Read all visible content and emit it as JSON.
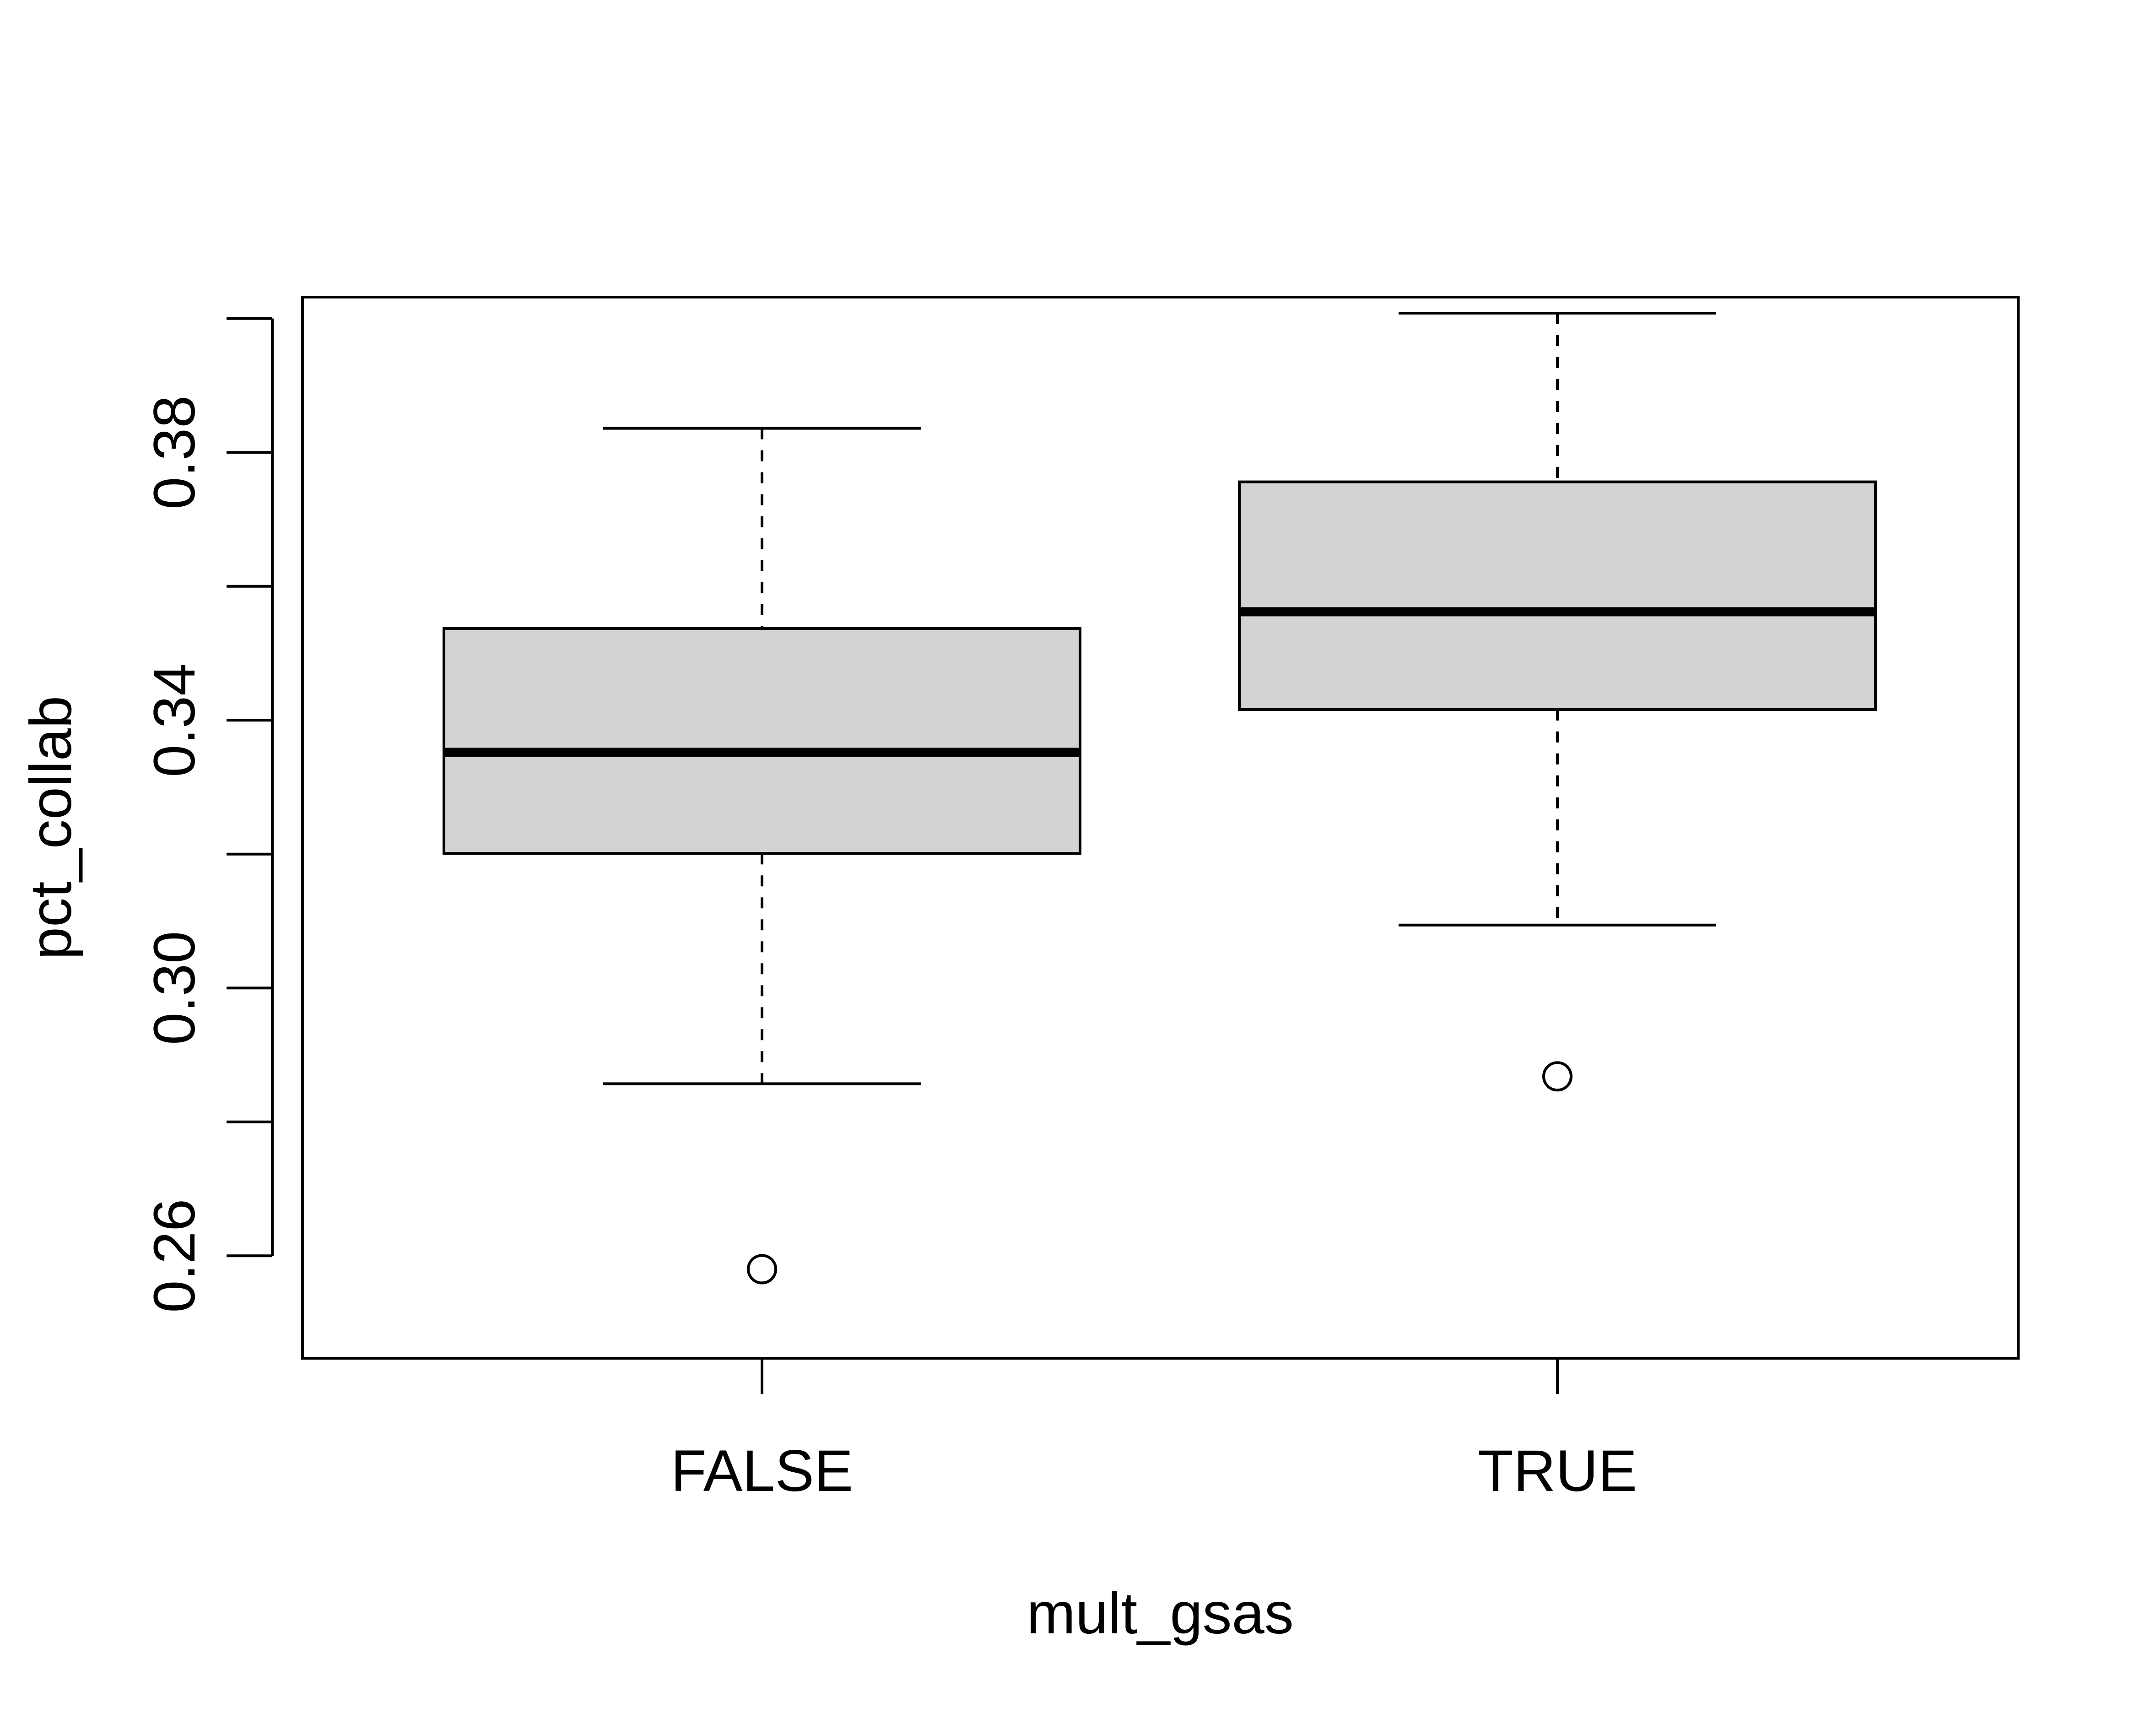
{
  "chart_data": {
    "type": "boxplot",
    "title": "",
    "xlabel": "mult_gsas",
    "ylabel": "pct_collab",
    "ylim": [
      0.2447,
      0.4032
    ],
    "y_ticks": [
      0.26,
      0.28,
      0.3,
      0.32,
      0.34,
      0.36,
      0.38,
      0.4
    ],
    "y_tick_labels": [
      "0.26",
      "",
      "0.30",
      "",
      "0.34",
      "",
      "0.38",
      ""
    ],
    "categories": [
      "FALSE",
      "TRUE"
    ],
    "boxes": [
      {
        "category": "FALSE",
        "whisker_low": 0.2857,
        "q1": 0.3201,
        "median": 0.3352,
        "q3": 0.3537,
        "whisker_high": 0.3836,
        "outliers": [
          0.258
        ]
      },
      {
        "category": "TRUE",
        "whisker_low": 0.3094,
        "q1": 0.3416,
        "median": 0.3562,
        "q3": 0.3756,
        "whisker_high": 0.4008,
        "outliers": [
          0.2868
        ]
      }
    ],
    "box_fill": "#d3d3d3",
    "line_color": "#000000",
    "grid": false,
    "legend": "none"
  }
}
